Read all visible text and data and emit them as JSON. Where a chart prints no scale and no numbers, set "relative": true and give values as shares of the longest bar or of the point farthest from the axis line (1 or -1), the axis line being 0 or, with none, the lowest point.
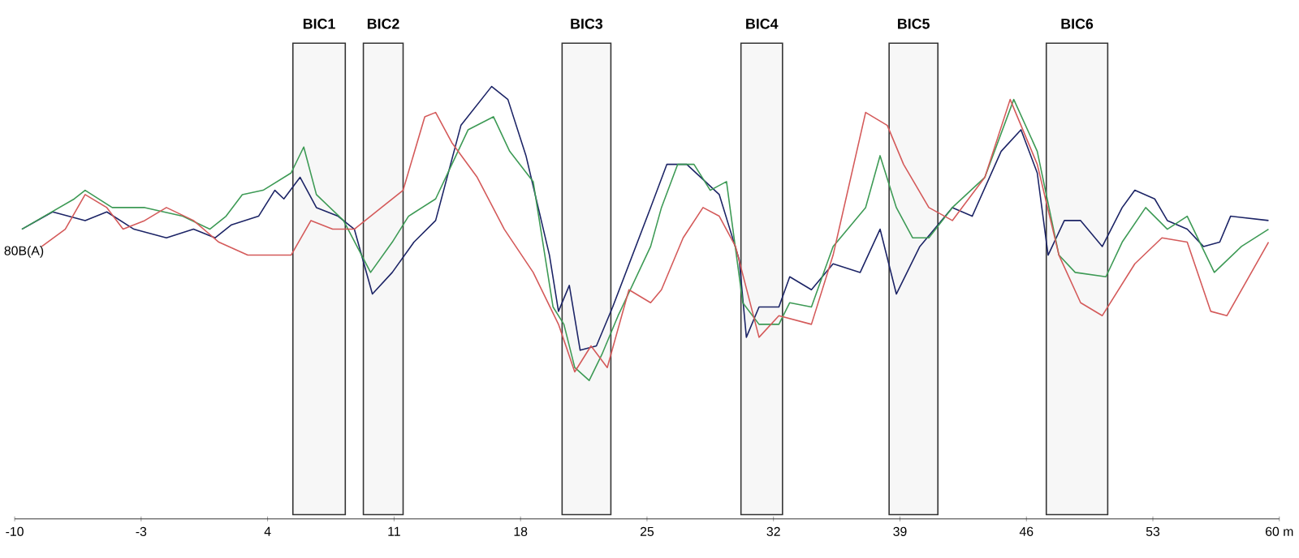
{
  "chart_data": {
    "type": "line",
    "relative": true,
    "marker": "none",
    "line_style": "solid",
    "xlim": [
      -10,
      60
    ],
    "xticks": [
      -10,
      -3,
      4,
      11,
      18,
      25,
      32,
      39,
      {
        "value": 46,
        "label": "46"
      },
      53,
      {
        "value": 60,
        "label": "60 m"
      }
    ],
    "annotations": [
      "80B(A)"
    ],
    "bands": [
      {
        "axis": "x",
        "from": 5.4,
        "to": 8.3,
        "label": "BIC1",
        "color": "#f7f7f7"
      },
      {
        "axis": "x",
        "from": 9.3,
        "to": 11.5,
        "label": "BIC2",
        "color": "#f7f7f7"
      },
      {
        "axis": "x",
        "from": 20.3,
        "to": 23.0,
        "label": "BIC3",
        "color": "#f7f7f7"
      },
      {
        "axis": "x",
        "from": 30.2,
        "to": 32.5,
        "label": "BIC4",
        "color": "#f7f7f7"
      },
      {
        "axis": "x",
        "from": 38.4,
        "to": 41.1,
        "label": "BIC5",
        "color": "#f7f7f7"
      },
      {
        "axis": "x",
        "from": 47.1,
        "to": 50.5,
        "label": "BIC6",
        "color": "#f7f7f7"
      }
    ],
    "series": [
      {
        "color": "#1c2466",
        "x": [
          -9.6,
          -7.9,
          -6.1,
          -4.9,
          -3.4,
          -1.6,
          -0.1,
          1.1,
          2.0,
          3.5,
          4.4,
          4.9,
          5.8,
          6.7,
          7.9,
          8.8,
          9.8,
          10.9,
          12.1,
          13.3,
          14.7,
          16.4,
          17.3,
          18.3,
          19.6,
          20.1,
          20.7,
          21.3,
          22.2,
          23.1,
          25.2,
          26.1,
          27.2,
          29.0,
          30.1,
          30.5,
          31.2,
          32.3,
          32.9,
          34.1,
          35.3,
          36.8,
          37.9,
          38.8,
          40.1,
          41.9,
          43.0,
          44.6,
          45.7,
          46.6,
          47.2,
          48.1,
          49.0,
          50.2,
          51.3,
          52.0,
          53.1,
          53.8,
          54.9,
          55.8,
          56.7,
          57.3,
          59.4
        ],
        "values": [
          0.67,
          0.71,
          0.69,
          0.71,
          0.67,
          0.65,
          0.67,
          0.65,
          0.68,
          0.7,
          0.76,
          0.74,
          0.79,
          0.72,
          0.7,
          0.67,
          0.52,
          0.57,
          0.64,
          0.69,
          0.91,
          1.0,
          0.97,
          0.84,
          0.61,
          0.48,
          0.54,
          0.39,
          0.4,
          0.49,
          0.72,
          0.82,
          0.82,
          0.75,
          0.6,
          0.42,
          0.49,
          0.49,
          0.56,
          0.53,
          0.59,
          0.57,
          0.67,
          0.52,
          0.63,
          0.72,
          0.7,
          0.85,
          0.9,
          0.8,
          0.61,
          0.69,
          0.69,
          0.63,
          0.72,
          0.76,
          0.74,
          0.69,
          0.67,
          0.63,
          0.64,
          0.7,
          0.69
        ]
      },
      {
        "color": "#3d9a55",
        "x": [
          -9.6,
          -6.7,
          -6.1,
          -4.6,
          -2.8,
          -0.7,
          0.8,
          1.7,
          2.6,
          3.75,
          5.3,
          6.0,
          6.7,
          8.2,
          9.7,
          10.9,
          11.8,
          13.3,
          14.2,
          15.1,
          16.5,
          17.4,
          18.7,
          19.8,
          20.4,
          21.0,
          21.8,
          22.5,
          23.4,
          25.2,
          25.8,
          26.7,
          27.6,
          28.5,
          29.4,
          30.3,
          31.2,
          32.3,
          32.9,
          34.1,
          35.3,
          37.1,
          37.9,
          38.8,
          39.7,
          40.6,
          41.9,
          43.7,
          45.3,
          46.6,
          47.8,
          48.7,
          50.4,
          51.3,
          52.6,
          53.8,
          54.9,
          56.4,
          57.9,
          59.4
        ],
        "values": [
          0.67,
          0.74,
          0.76,
          0.72,
          0.72,
          0.7,
          0.67,
          0.7,
          0.75,
          0.76,
          0.8,
          0.86,
          0.75,
          0.69,
          0.57,
          0.64,
          0.7,
          0.74,
          0.82,
          0.9,
          0.93,
          0.85,
          0.78,
          0.49,
          0.45,
          0.35,
          0.32,
          0.38,
          0.47,
          0.63,
          0.72,
          0.82,
          0.82,
          0.76,
          0.78,
          0.5,
          0.45,
          0.45,
          0.5,
          0.49,
          0.63,
          0.72,
          0.84,
          0.72,
          0.65,
          0.65,
          0.72,
          0.79,
          0.97,
          0.85,
          0.61,
          0.57,
          0.56,
          0.64,
          0.72,
          0.67,
          0.7,
          0.57,
          0.63,
          0.67
        ]
      },
      {
        "color": "#d45a5a",
        "x": [
          -8.5,
          -7.2,
          -6.1,
          -4.9,
          -4.0,
          -2.8,
          -1.6,
          -0.1,
          1.3,
          2.9,
          5.3,
          6.4,
          7.6,
          8.8,
          10.3,
          11.5,
          12.7,
          13.3,
          14.2,
          15.6,
          17.1,
          18.7,
          20.1,
          21.0,
          21.9,
          22.8,
          24.0,
          25.2,
          25.8,
          27.0,
          28.1,
          29.0,
          29.9,
          31.2,
          32.3,
          34.1,
          35.3,
          37.1,
          38.3,
          39.2,
          40.6,
          41.9,
          43.7,
          45.1,
          46.6,
          47.8,
          49.0,
          50.2,
          52.0,
          53.5,
          54.9,
          56.2,
          57.1,
          59.4
        ],
        "values": [
          0.63,
          0.67,
          0.75,
          0.72,
          0.67,
          0.69,
          0.72,
          0.69,
          0.64,
          0.61,
          0.61,
          0.69,
          0.67,
          0.67,
          0.72,
          0.76,
          0.93,
          0.94,
          0.87,
          0.79,
          0.67,
          0.57,
          0.45,
          0.34,
          0.4,
          0.35,
          0.53,
          0.5,
          0.53,
          0.65,
          0.72,
          0.7,
          0.63,
          0.42,
          0.47,
          0.45,
          0.61,
          0.94,
          0.91,
          0.82,
          0.72,
          0.69,
          0.79,
          0.97,
          0.82,
          0.61,
          0.5,
          0.47,
          0.59,
          0.65,
          0.64,
          0.48,
          0.47,
          0.64
        ]
      }
    ]
  }
}
